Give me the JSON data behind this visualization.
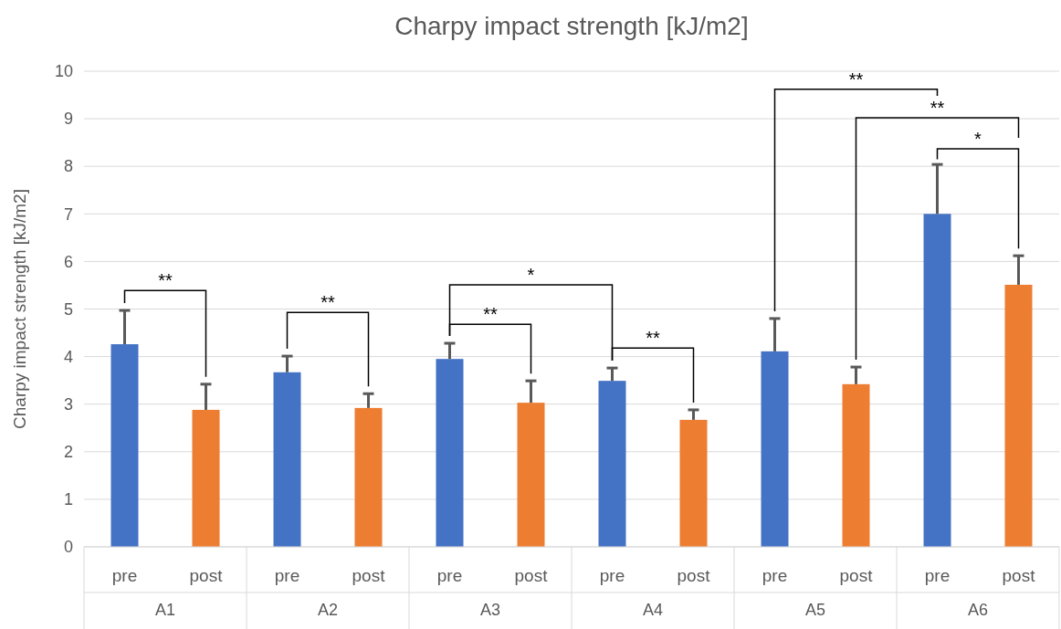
{
  "chart_data": {
    "type": "bar",
    "title": "Charpy impact strength [kJ/m2]",
    "ylabel": "Charpy impact strength [kJ/m2]",
    "categories": [
      "A1",
      "A2",
      "A3",
      "A4",
      "A5",
      "A6"
    ],
    "series": [
      {
        "name": "pre",
        "color": "#4472c4",
        "values": [
          4.26,
          3.67,
          3.95,
          3.49,
          4.11,
          7.0
        ],
        "errors": [
          [
            4.26,
            4.97
          ],
          [
            3.67,
            4.01
          ],
          [
            3.95,
            4.28
          ],
          [
            3.49,
            3.76
          ],
          [
            4.11,
            4.8
          ],
          [
            7.0,
            8.04
          ]
        ]
      },
      {
        "name": "post",
        "color": "#ed7d31",
        "values": [
          2.88,
          2.92,
          3.03,
          2.67,
          3.42,
          5.51
        ],
        "errors": [
          [
            2.88,
            3.42
          ],
          [
            2.92,
            3.22
          ],
          [
            3.03,
            3.49
          ],
          [
            2.67,
            2.88
          ],
          [
            3.42,
            3.78
          ],
          [
            5.51,
            6.12
          ]
        ]
      }
    ],
    "ylim": [
      0,
      10
    ],
    "yticks": [
      0,
      1,
      2,
      3,
      4,
      5,
      6,
      7,
      8,
      9,
      10
    ],
    "grid": "y",
    "annotations": [
      "**",
      "**",
      "*",
      "**",
      "**",
      "**",
      "**",
      "*"
    ]
  }
}
